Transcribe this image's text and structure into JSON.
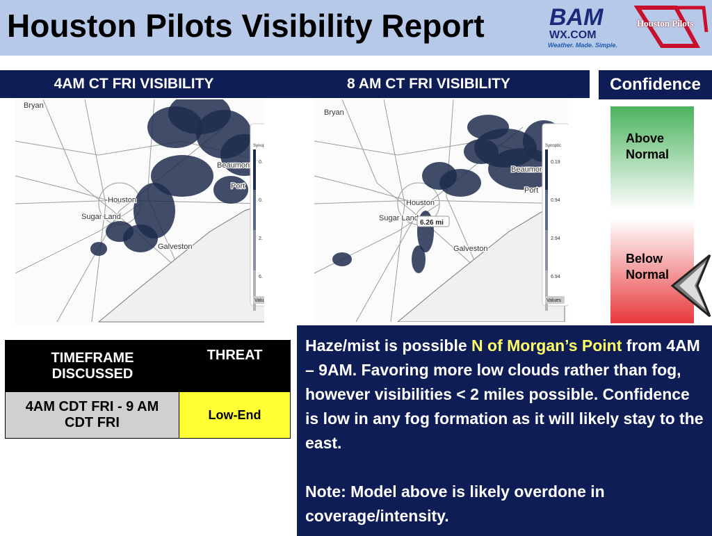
{
  "header": {
    "title": "Houston Pilots Visibility Report",
    "logo_bam": "BAM",
    "logo_wx": "WX.COM",
    "logo_tagline": "Weather. Made. Simple.",
    "logo_pilots": "Houston Pilots"
  },
  "panels": [
    {
      "title": "4AM CT FRI VISIBILITY",
      "places": [
        "Bryan",
        "Houston",
        "Sugar Land",
        "Galveston",
        "Beaumont",
        "Port"
      ],
      "legend_title": "Synoptic",
      "legend_values": [
        "0.",
        "0.",
        "2.",
        "6."
      ],
      "legend_button": "Valu"
    },
    {
      "title": "8 AM CT FRI VISIBILITY",
      "places": [
        "Bryan",
        "Houston",
        "Sugar Land",
        "Galveston",
        "Beaumont",
        "Port"
      ],
      "legend_title": "Synoptic",
      "legend_values": [
        "0.19",
        "0.94",
        "2.94",
        "6.94"
      ],
      "legend_button": "Values",
      "probe": "6.26 mi"
    }
  ],
  "confidence": {
    "title": "Confidence",
    "high": "Above Normal",
    "low": "Below Normal"
  },
  "table": {
    "headers": [
      "TIMEFRAME DISCUSSED",
      "THREAT"
    ],
    "rows": [
      [
        "4AM CDT FRI - 9 AM CDT FRI",
        "Low-End"
      ]
    ]
  },
  "text_box": {
    "before": "Haze/mist is possible ",
    "highlight": "N of Morgan’s Point",
    "after": " from 4AM – 9AM. Favoring more low clouds rather than fog, however visibilities < 2 miles possible. Confidence is low in any fog formation as it will likely stay to the east.",
    "note": "Note: Model above is likely overdone in coverage/intensity."
  }
}
